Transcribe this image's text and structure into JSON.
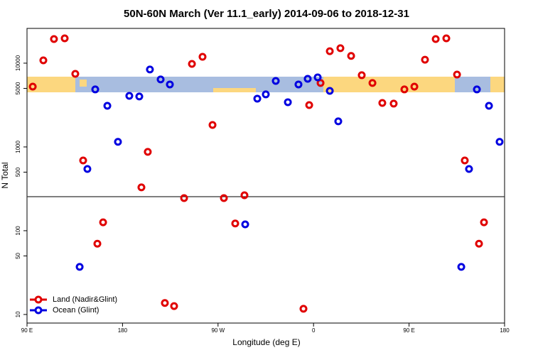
{
  "chart_data": {
    "type": "scatter",
    "title": "50N-60N March (Ver 11.1_early)   2014-09-06 to 2018-12-31",
    "x_label": "Longitude (deg E)",
    "y_label": "N Total",
    "log_y": true,
    "xlim": [
      90,
      540
    ],
    "ylim": [
      7.9,
      26000
    ],
    "xticks": [
      {
        "value": 90,
        "label": "90 E"
      },
      180,
      {
        "value": 270,
        "label": "90 W"
      },
      {
        "value": 360,
        "label": "0"
      },
      {
        "value": 450,
        "label": "90 E"
      },
      {
        "value": 540,
        "label": "180"
      }
    ],
    "yticks": [
      10,
      50,
      100,
      500,
      1000,
      5000,
      10000
    ],
    "reference_line": 255,
    "legend_position": "bottom-left",
    "series": [
      {
        "name": "Land (Nadir&Glint)",
        "color": "#e00000",
        "x": [
          95.4,
          105.4,
          115.4,
          125.5,
          135.5,
          142.9,
          156.3,
          161.7,
          197.8,
          203.8,
          219.9,
          228.6,
          238.0,
          245.4,
          255.4,
          264.8,
          275.5,
          286.2,
          294.9,
          350.5,
          355.9,
          366.6,
          375.3,
          385.3,
          395.4,
          405.4,
          415.5,
          424.8,
          435.5,
          445.6,
          455.0,
          465.0,
          475.1,
          485.1,
          495.2,
          502.5,
          515.9,
          520.6
        ],
        "values": [
          5250,
          10800,
          19400,
          19800,
          7460,
          690,
          70,
          126,
          329,
          873,
          13.7,
          12.6,
          245,
          9800,
          11900,
          1830,
          245,
          122,
          265,
          11.7,
          3160,
          5800,
          13900,
          15100,
          12200,
          7180,
          5800,
          3350,
          3290,
          4860,
          5250,
          11000,
          19400,
          19800,
          7310,
          690,
          70,
          126
        ]
      },
      {
        "name": "Ocean (Glint)",
        "color": "#0000e0",
        "x": [
          139.6,
          146.9,
          154.3,
          165.7,
          175.7,
          186.4,
          195.8,
          205.8,
          215.9,
          224.6,
          295.6,
          307.0,
          315.0,
          324.4,
          335.8,
          345.8,
          354.5,
          363.9,
          375.3,
          383.3,
          499.2,
          506.5,
          513.9,
          525.3,
          535.3
        ],
        "values": [
          37,
          546,
          4860,
          3100,
          1150,
          4070,
          4000,
          8400,
          6390,
          5570,
          119,
          3770,
          4240,
          6140,
          3420,
          5570,
          6510,
          6770,
          4670,
          2020,
          37,
          546,
          4860,
          3100,
          1150
        ]
      }
    ]
  }
}
